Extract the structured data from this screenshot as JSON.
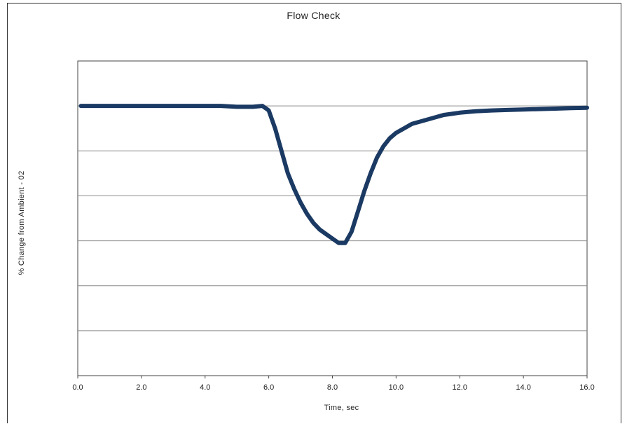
{
  "chart_data": {
    "type": "line",
    "title": "Flow Check",
    "xlabel": "Time, sec",
    "ylabel": "% Change from Ambient - 02",
    "xlim": [
      0,
      16
    ],
    "ylim": [
      -6,
      1
    ],
    "xticks": [
      "0.0",
      "2.0",
      "4.0",
      "6.0",
      "8.0",
      "10.0",
      "12.0",
      "14.0",
      "16.0"
    ],
    "yticks": [],
    "grid": "horizontal",
    "legend": "none",
    "series": [
      {
        "color": "#1b3a63",
        "x": [
          0.1,
          0.5,
          1.0,
          1.5,
          2.0,
          2.5,
          3.0,
          3.5,
          4.0,
          4.5,
          5.0,
          5.5,
          5.8,
          6.0,
          6.2,
          6.4,
          6.6,
          6.8,
          7.0,
          7.2,
          7.4,
          7.6,
          7.8,
          8.0,
          8.2,
          8.4,
          8.6,
          8.8,
          9.0,
          9.2,
          9.4,
          9.6,
          9.8,
          10.0,
          10.5,
          11.0,
          11.5,
          12.0,
          12.5,
          13.0,
          13.5,
          14.0,
          14.5,
          15.0,
          15.5,
          16.0
        ],
        "y": [
          0.0,
          0.0,
          0.0,
          0.0,
          0.0,
          0.0,
          0.0,
          0.0,
          0.0,
          0.0,
          -0.02,
          -0.02,
          0.0,
          -0.1,
          -0.5,
          -1.0,
          -1.5,
          -1.85,
          -2.15,
          -2.4,
          -2.6,
          -2.75,
          -2.85,
          -2.95,
          -3.05,
          -3.05,
          -2.8,
          -2.35,
          -1.9,
          -1.5,
          -1.15,
          -0.9,
          -0.72,
          -0.6,
          -0.4,
          -0.3,
          -0.2,
          -0.15,
          -0.12,
          -0.1,
          -0.09,
          -0.08,
          -0.07,
          -0.06,
          -0.05,
          -0.04
        ]
      }
    ]
  }
}
